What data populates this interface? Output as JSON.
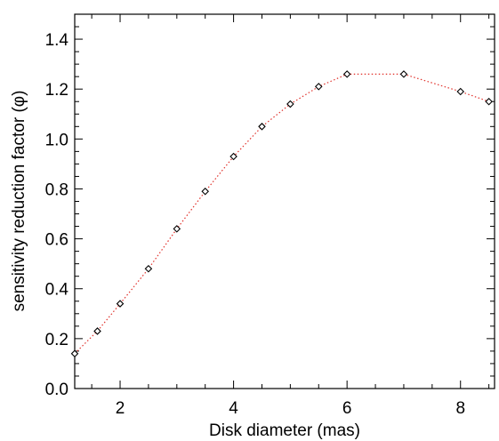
{
  "chart_data": {
    "type": "scatter",
    "title": "",
    "xlabel": "Disk diameter (mas)",
    "ylabel": "sensitivity reduction factor (φ)",
    "xlim": [
      1.2,
      8.6
    ],
    "ylim": [
      0.0,
      1.5
    ],
    "x_ticks": [
      2,
      4,
      6,
      8
    ],
    "y_ticks": [
      0.0,
      0.2,
      0.4,
      0.6,
      0.8,
      1.0,
      1.2,
      1.4
    ],
    "x_tick_labels": [
      "2",
      "4",
      "6",
      "8"
    ],
    "y_tick_labels": [
      "0.0",
      "0.2",
      "0.4",
      "0.6",
      "0.8",
      "1.0",
      "1.2",
      "1.4"
    ],
    "grid": false,
    "series": [
      {
        "marker": "diamond",
        "marker_color": "#000000",
        "line_style": "dotted",
        "line_color": "#e0302a",
        "x": [
          1.2,
          1.6,
          2.0,
          2.5,
          3.0,
          3.5,
          4.0,
          4.5,
          5.0,
          5.5,
          6.0,
          7.0,
          8.0,
          8.5
        ],
        "y": [
          0.14,
          0.23,
          0.34,
          0.48,
          0.64,
          0.79,
          0.93,
          1.05,
          1.14,
          1.21,
          1.26,
          1.26,
          1.19,
          1.15
        ]
      }
    ]
  }
}
